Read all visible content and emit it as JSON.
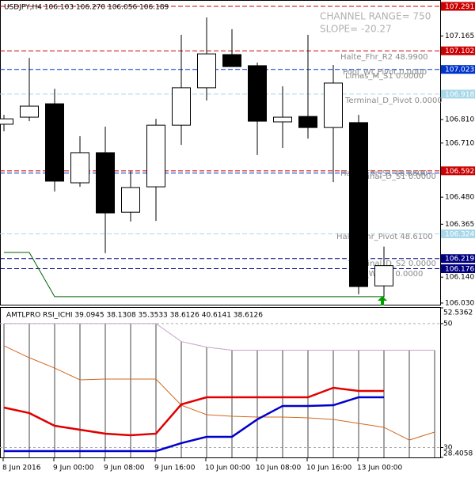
{
  "chart_data": [
    {
      "type": "candlestick",
      "title": "USDJPY,H4  106.103 106.270 106.056 106.189",
      "annotations": [
        "CHANNEL RANGE= 750",
        "SLOPE= -20.27"
      ],
      "level_texts": [
        "Halte_Fhr_R2 48.9900",
        "Pool_WI_Pivot 0.0000",
        "Limas_M_S1 0.0000",
        "Terminal_D_Pivot 0.0000",
        "Halte_Fhr_S1 48.8600",
        "Terminal_D_S1 0.0000",
        "Halte_Fhr_Pivot 48.6100",
        "Terminal_D_S2 0.0000",
        "Pool_WI_S1 0.0000"
      ],
      "open": [
        106.79,
        106.82,
        106.877,
        106.541,
        106.669,
        106.416,
        106.524,
        106.786,
        106.945,
        107.086,
        107.039,
        106.8,
        106.823,
        106.776,
        106.797,
        106.103
      ],
      "high": [
        106.83,
        107.072,
        106.941,
        106.739,
        106.78,
        106.591,
        106.813,
        107.17,
        107.244,
        107.194,
        107.052,
        106.951,
        107.17,
        107.042,
        106.83,
        106.27
      ],
      "low": [
        106.76,
        106.803,
        106.504,
        106.524,
        106.242,
        106.376,
        106.379,
        106.702,
        106.891,
        107.035,
        106.659,
        106.689,
        106.729,
        106.544,
        106.067,
        106.056
      ],
      "close": [
        106.813,
        106.867,
        106.548,
        106.669,
        106.413,
        106.521,
        106.786,
        106.945,
        107.089,
        107.035,
        106.803,
        106.82,
        106.776,
        106.965,
        106.1,
        106.189
      ],
      "up_color": "#ffffff",
      "down_color": "#000000",
      "trail": {
        "color": "#006400",
        "values": [
          106.245,
          106.245,
          106.057,
          106.057,
          106.057,
          106.057,
          106.057,
          106.057,
          106.057,
          106.057,
          106.057,
          106.057,
          106.057,
          106.057,
          106.057,
          106.057
        ]
      },
      "levels": [
        {
          "value": 107.291,
          "color": "#cc0000",
          "box": true
        },
        {
          "value": 107.102,
          "color": "#cc0000",
          "box": true
        },
        {
          "value": 107.023,
          "color": "#0033cc",
          "box": true
        },
        {
          "value": 106.918,
          "color": "#a8d8e8",
          "box": true
        },
        {
          "value": 106.592,
          "color": "#cc0000",
          "box": true
        },
        {
          "value": 106.582,
          "color": "#0033cc",
          "box": false
        },
        {
          "value": 106.324,
          "color": "#a8d8e8",
          "box": true
        },
        {
          "value": 106.219,
          "color": "#000080",
          "box": true
        },
        {
          "value": 106.176,
          "color": "#000080",
          "box": true
        }
      ],
      "ylim": [
        106.023,
        107.318
      ],
      "yticks": [
        107.165,
        {
          "value": 106.81,
          "label": "106.810"
        },
        {
          "value": 106.71,
          "label": "106.710"
        },
        {
          "value": 106.48,
          "label": "106.480"
        },
        106.365,
        {
          "value": 106.14,
          "label": "106.140"
        },
        {
          "value": 106.03,
          "label": "106.030"
        }
      ]
    },
    {
      "type": "line",
      "title": "AMTLPRO RSI_ICHI 39.0945 38.1308 35.3533 38.6126 40.6141 38.6126",
      "categories": [
        "8 Jun 2016",
        null,
        "9 Jun 00:00",
        null,
        "9 Jun 08:00",
        null,
        "9 Jun 16:00",
        null,
        "10 Jun 00:00",
        null,
        "10 Jun 08:00",
        null,
        "10 Jun 16:00",
        null,
        "13 Jun 00:00",
        null,
        null,
        null
      ],
      "histogram": {
        "color": "#c8a2c8",
        "bar_color": "#444444",
        "values": [
          50,
          50,
          50,
          50,
          50,
          50,
          50,
          47.1,
          46.2,
          45.7,
          45.7,
          45.7,
          45.7,
          45.7,
          45.7,
          45.7,
          45.7,
          45.7
        ]
      },
      "series": [
        {
          "color": "#d2691e",
          "width": 1,
          "values": [
            46.41,
            44.49,
            42.83,
            40.92,
            41.05,
            41.05,
            41.05,
            36.83,
            35.3,
            35.05,
            34.92,
            34.92,
            34.79,
            34.54,
            33.9,
            33.26,
            31.21,
            32.49
          ]
        },
        {
          "color": "#e00000",
          "width": 2.5,
          "values": [
            36.45,
            35.56,
            33.51,
            32.87,
            32.24,
            31.98,
            32.24,
            36.96,
            38.11,
            38.11,
            38.11,
            38.11,
            38.11,
            39.64,
            39.13,
            39.13,
            null,
            null
          ]
        },
        {
          "color": "#0000cc",
          "width": 2.5,
          "values": [
            29.43,
            29.43,
            29.43,
            29.43,
            29.43,
            29.43,
            29.43,
            30.71,
            31.73,
            31.73,
            34.54,
            36.71,
            36.71,
            36.83,
            38.11,
            38.11,
            null,
            null
          ]
        }
      ],
      "ylim": [
        28.4058,
        52.5362
      ],
      "yticks": [
        52.5362,
        50,
        30,
        28.4058
      ],
      "grid": [
        50,
        30
      ]
    }
  ]
}
